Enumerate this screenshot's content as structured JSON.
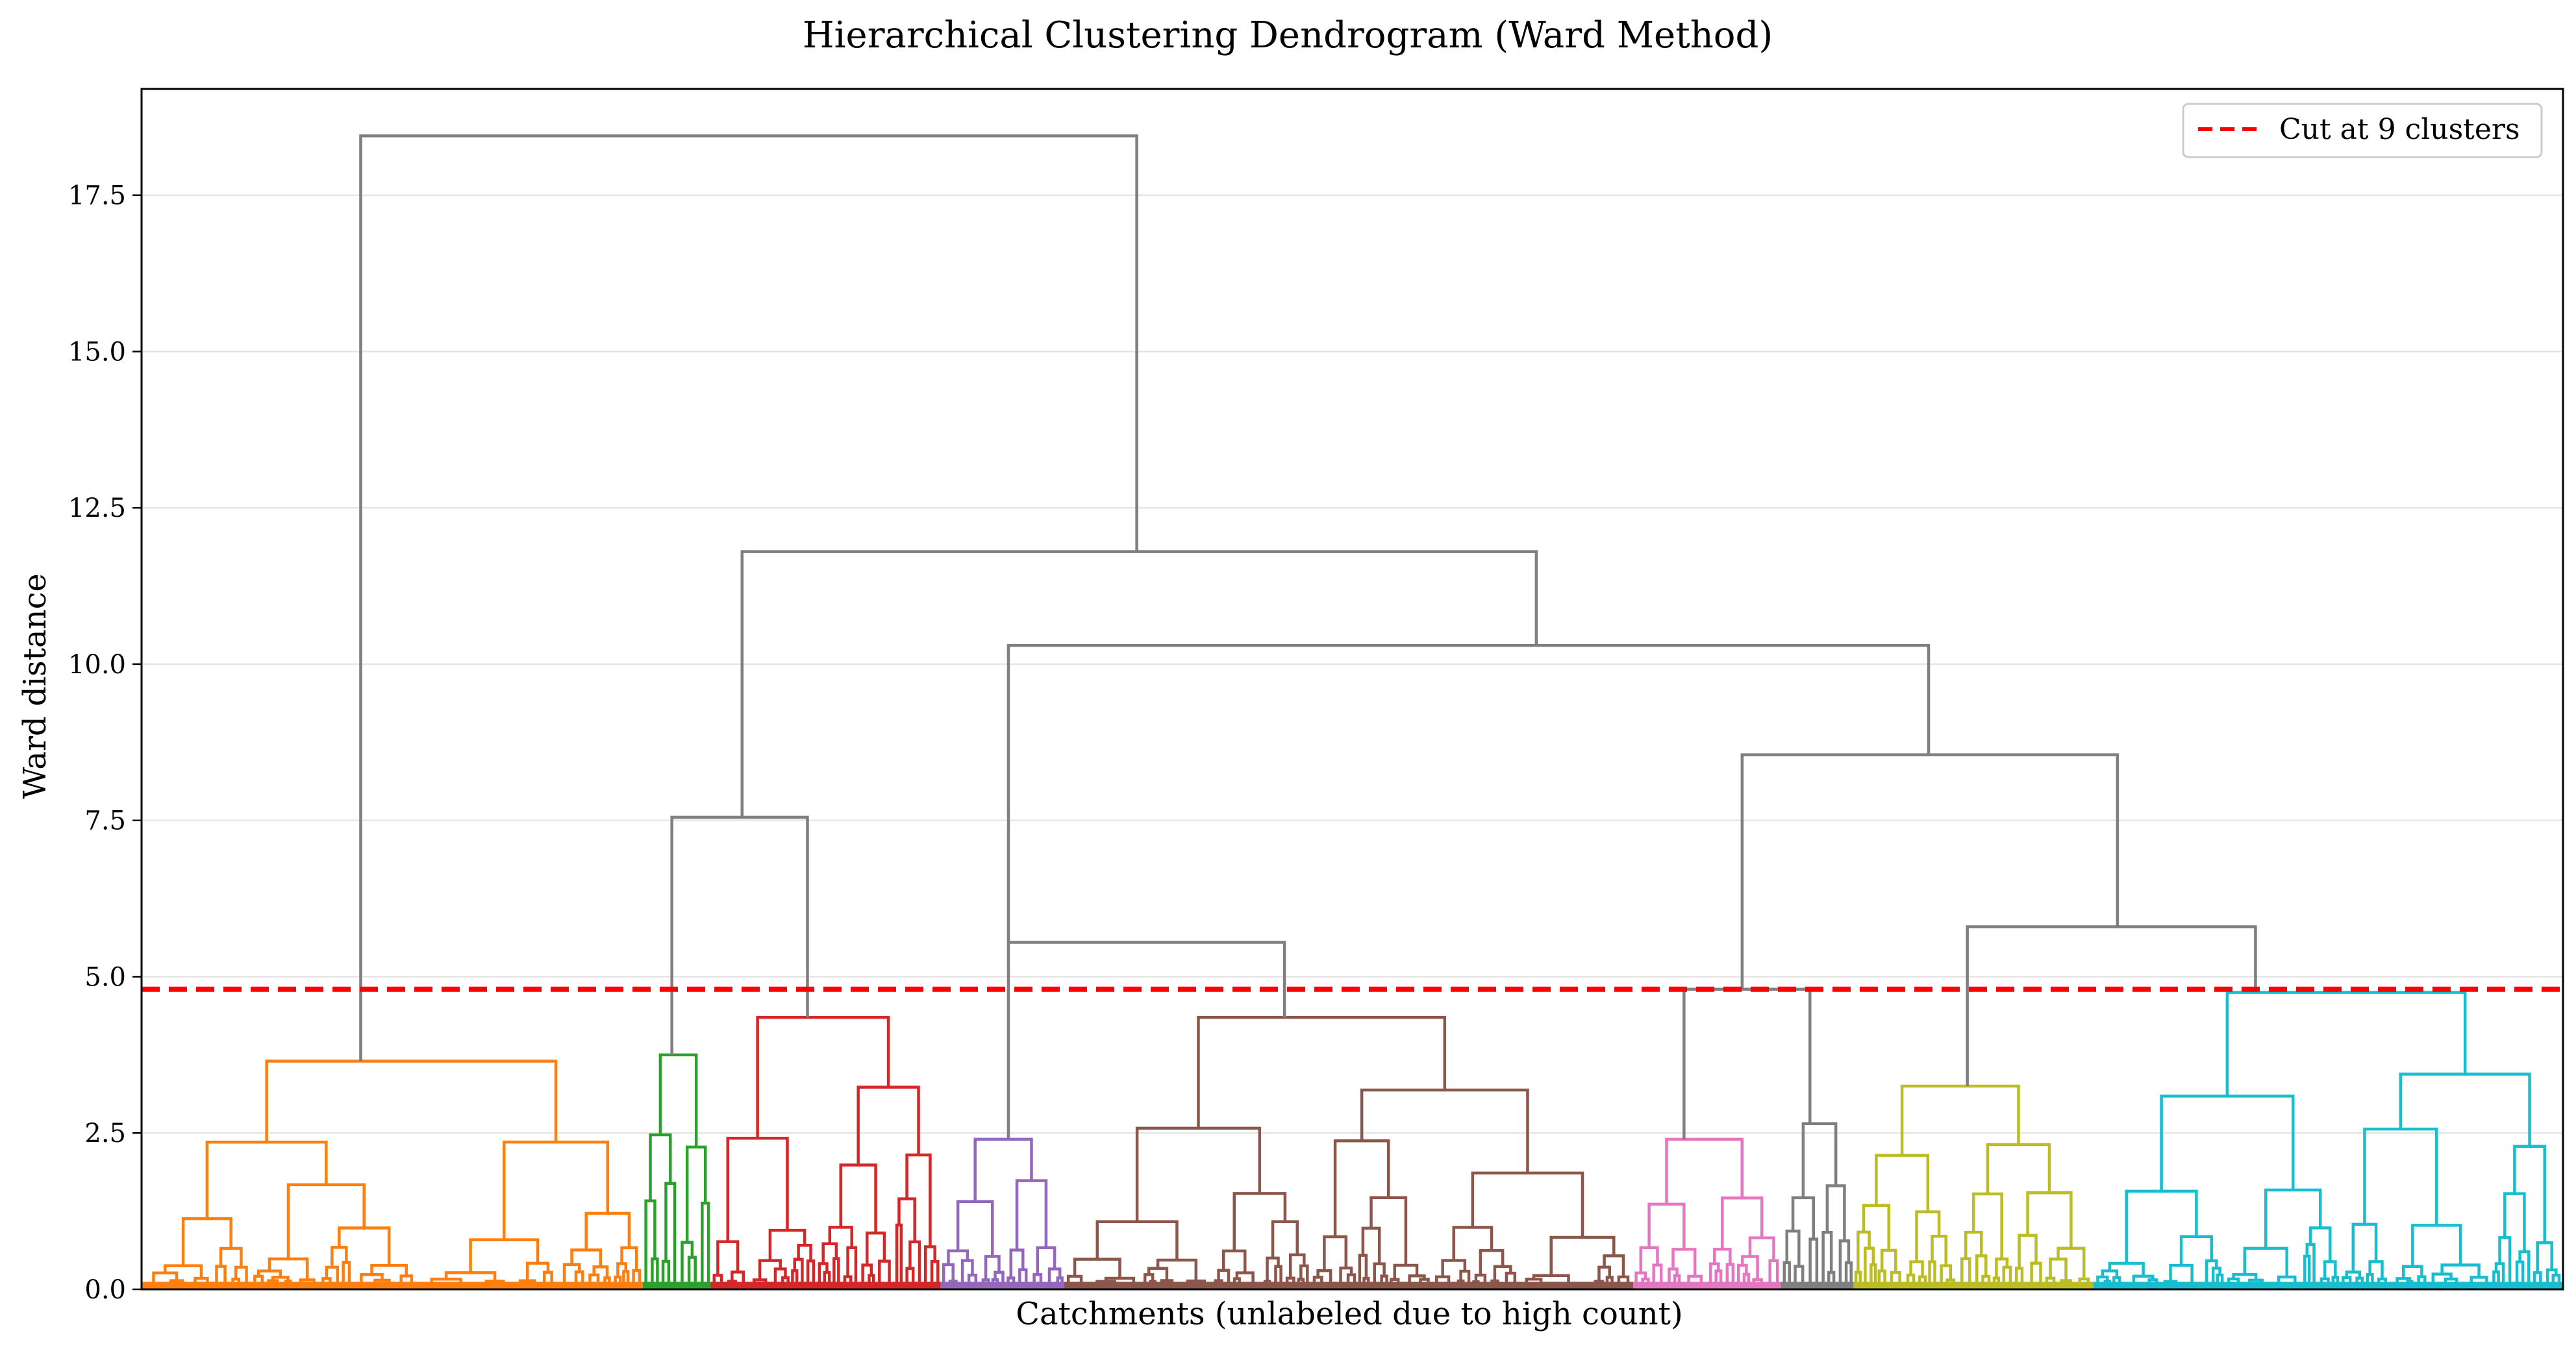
{
  "chart_data": {
    "type": "dendrogram",
    "title": "Hierarchical Clustering Dendrogram (Ward Method)",
    "xlabel": "Catchments (unlabeled due to high count)",
    "ylabel": "Ward distance",
    "ylim": [
      0,
      19.2
    ],
    "yticks": [
      0.0,
      2.5,
      5.0,
      7.5,
      10.0,
      12.5,
      15.0,
      17.5
    ],
    "ytick_labels": [
      "0.0",
      "2.5",
      "5.0",
      "7.5",
      "10.0",
      "12.5",
      "15.0",
      "17.5"
    ],
    "grid": true,
    "legend": {
      "placement": "top-right",
      "entries": [
        {
          "label": "Cut at 9 clusters",
          "style": "dashed",
          "color": "#ff0000"
        }
      ]
    },
    "cut_height": 4.8,
    "colors": {
      "orange": "#ff7f0e",
      "green": "#2ca02c",
      "red": "#d62728",
      "purple": "#9467bd",
      "brown": "#8c564b",
      "pink": "#e377c2",
      "gray": "#7f7f7f",
      "olive": "#bcbd22",
      "cyan": "#17becf",
      "link": "#7f7f7f"
    },
    "clusters": [
      {
        "name": "orange",
        "x_range": [
          0.0,
          20.7
        ],
        "height": 3.65
      },
      {
        "name": "green",
        "x_range": [
          20.7,
          23.5
        ],
        "height": 3.75
      },
      {
        "name": "red",
        "x_range": [
          23.5,
          33.0
        ],
        "height": 4.35
      },
      {
        "name": "purple",
        "x_range": [
          33.0,
          38.1
        ],
        "height": 2.4
      },
      {
        "name": "brown",
        "x_range": [
          38.1,
          61.6
        ],
        "height": 4.35
      },
      {
        "name": "pink",
        "x_range": [
          61.6,
          67.7
        ],
        "height": 2.4
      },
      {
        "name": "gray",
        "x_range": [
          67.7,
          70.7
        ],
        "height": 2.65
      },
      {
        "name": "olive",
        "x_range": [
          70.7,
          80.6
        ],
        "height": 3.25
      },
      {
        "name": "cyan",
        "x_range": [
          80.6,
          100.0
        ],
        "height": 4.75
      }
    ],
    "link_merges": [
      {
        "left": [
          9.05,
          3.65
        ],
        "right": [
          41.1,
          11.8
        ],
        "height": 18.45
      },
      {
        "left": [
          24.8,
          7.55
        ],
        "right": [
          57.6,
          10.3
        ],
        "height": 11.8
      },
      {
        "left": [
          21.9,
          3.75
        ],
        "right": [
          27.5,
          4.35
        ],
        "height": 7.55
      },
      {
        "left": [
          35.8,
          5.55
        ],
        "right": [
          73.8,
          8.55
        ],
        "height": 10.3
      },
      {
        "left": [
          35.8,
          2.4
        ],
        "right": [
          47.2,
          4.35
        ],
        "height": 5.55
      },
      {
        "left": [
          66.1,
          4.8
        ],
        "right": [
          81.6,
          5.8
        ],
        "height": 8.55
      },
      {
        "left": [
          63.7,
          2.4
        ],
        "right": [
          68.9,
          2.65
        ],
        "height": 4.8
      },
      {
        "left": [
          75.4,
          3.25
        ],
        "right": [
          87.3,
          4.75
        ],
        "height": 5.8
      }
    ]
  }
}
